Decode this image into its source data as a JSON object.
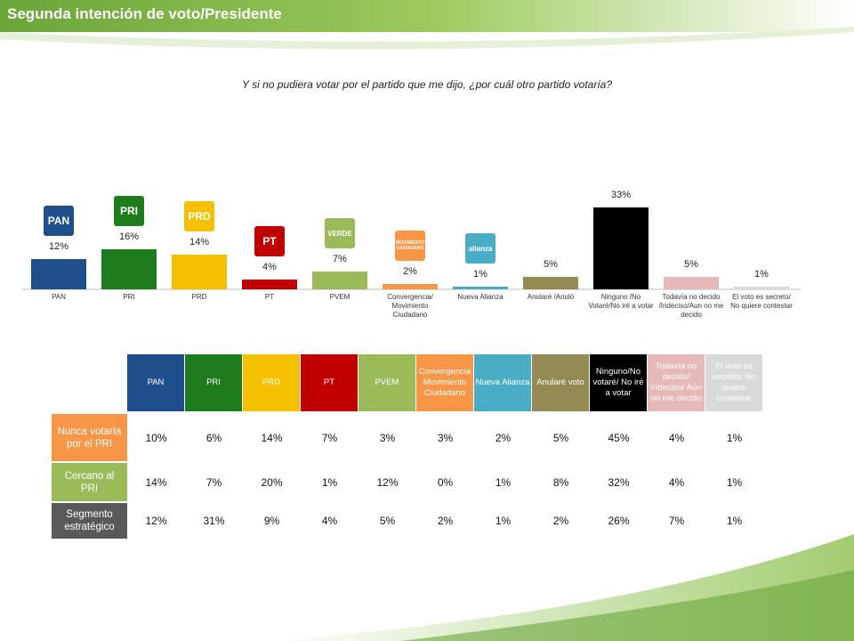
{
  "title": "Segunda intención de voto/Presidente",
  "chart_data": {
    "type": "bar",
    "subtitle": "Y si no pudiera votar por el partido que me dijo, ¿por cuál otro partido votaría?",
    "categories": [
      "PAN",
      "PRI",
      "PRD",
      "PT",
      "PVEM",
      "Convergencia/ Movimiento Ciudadano",
      "Nueva Alianza",
      "Anularé /Anuló",
      "Ninguno /No Votaré/No iré a votar",
      "Todavía no decido /Indeciso/Aun no me decido",
      "El voto es secreto/ No quiere contestar"
    ],
    "values": [
      12,
      16,
      14,
      4,
      7,
      2,
      1,
      5,
      33,
      5,
      1
    ],
    "value_labels": [
      "12%",
      "16%",
      "14%",
      "4%",
      "7%",
      "2%",
      "1%",
      "5%",
      "33%",
      "5%",
      "1%"
    ],
    "colors": [
      "#1f4e8c",
      "#1e7b1e",
      "#f5c000",
      "#c00000",
      "#9bbb59",
      "#f79646",
      "#4bacc6",
      "#948a54",
      "#000000",
      "#e6b9b8",
      "#d9d9d9"
    ],
    "logos": [
      "PAN",
      "PRI",
      "PRD",
      "PT",
      "VERDE",
      "MOVIMIENTO CIUDADANO",
      "alianza"
    ]
  },
  "table": {
    "columns": [
      "PAN",
      "PRI",
      "PRD",
      "PT",
      "PVEM",
      "Convergencia Movimiento Ciudadano",
      "Nueva Alianza",
      "Anularé voto",
      "Ninguno/No votaré/ No iré a votar",
      "Todavía no decido/ Indeciso/ Aún no me decido",
      "El voto es secreto/ No quiere contestar"
    ],
    "column_colors": [
      "#1f4e8c",
      "#1e7b1e",
      "#f5c000",
      "#c00000",
      "#9bbb59",
      "#f79646",
      "#4bacc6",
      "#948a54",
      "#000000",
      "#e6b9b8",
      "#d9d9d9"
    ],
    "rows": [
      {
        "label": "Nunca votaría por el PRI",
        "color": "#f79646",
        "cells": [
          "10%",
          "6%",
          "14%",
          "7%",
          "3%",
          "3%",
          "2%",
          "5%",
          "45%",
          "4%",
          "1%"
        ]
      },
      {
        "label": "Cercano al PRI",
        "color": "#9bbb59",
        "cells": [
          "14%",
          "7%",
          "20%",
          "1%",
          "12%",
          "0%",
          "1%",
          "8%",
          "32%",
          "4%",
          "1%"
        ]
      },
      {
        "label": "Segmento estratégico",
        "color": "#595959",
        "cells": [
          "12%",
          "31%",
          "9%",
          "4%",
          "5%",
          "2%",
          "1%",
          "2%",
          "26%",
          "7%",
          "1%"
        ]
      }
    ]
  }
}
